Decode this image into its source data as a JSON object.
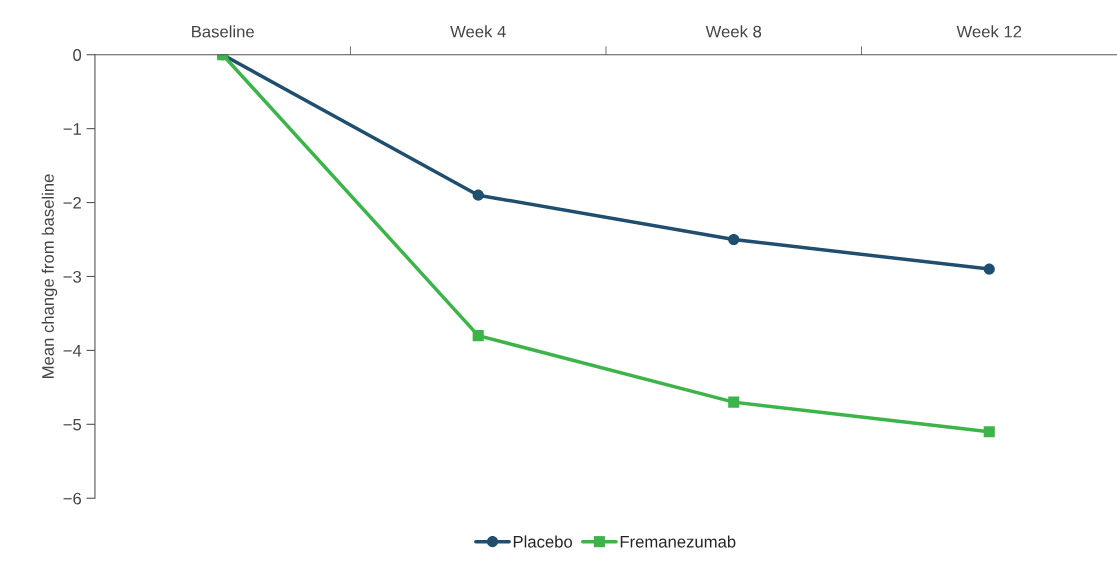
{
  "chart_data": {
    "type": "line",
    "ylabel": "Mean change from baseline",
    "categories": [
      "Baseline",
      "Week 4",
      "Week 8",
      "Week 12"
    ],
    "series": [
      {
        "name": "Placebo",
        "color": "#1f4e6e",
        "marker": "circle",
        "values": [
          0,
          -1.9,
          -2.5,
          -2.9
        ]
      },
      {
        "name": "Fremanezumab",
        "color": "#3cb44a",
        "marker": "square",
        "values": [
          0,
          -3.8,
          -4.7,
          -5.1
        ]
      }
    ],
    "ylim": [
      -6,
      0
    ],
    "yticks": [
      {
        "value": 0,
        "label": "0"
      },
      {
        "value": -1,
        "label": "−1"
      },
      {
        "value": -2,
        "label": "−2"
      },
      {
        "value": -3,
        "label": "−3"
      },
      {
        "value": -4,
        "label": "−4"
      },
      {
        "value": -5,
        "label": "−5"
      },
      {
        "value": -6,
        "label": "−6"
      }
    ],
    "grid": false,
    "legend": "bottom",
    "line_style": "solid"
  }
}
